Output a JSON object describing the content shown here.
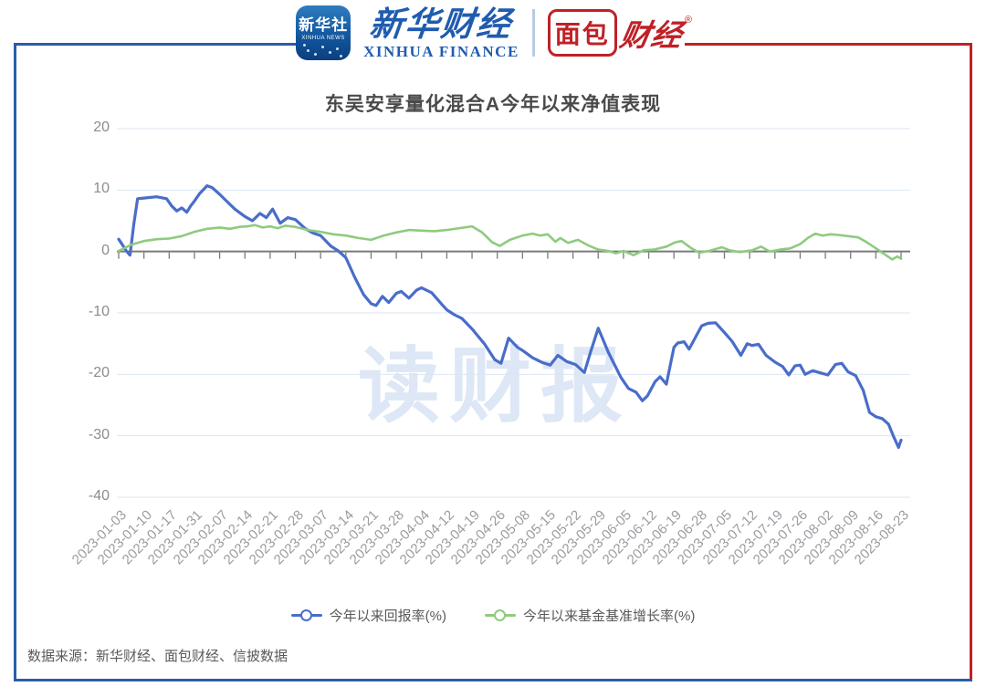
{
  "header": {
    "news_badge": {
      "cn": "新华社",
      "en": "XINHUA NEWS"
    },
    "finance_logo": {
      "cn": "新华财经",
      "en": "XINHUA FINANCE"
    },
    "bread_logo": {
      "cn_boxed": "面包",
      "cn_italic": "财经",
      "reg": "®"
    }
  },
  "chart_data": {
    "type": "line",
    "title": "东吴安享量化混合A今年以来净值表现",
    "categories": [
      "2023-01-03",
      "2023-01-10",
      "2023-01-17",
      "2023-01-31",
      "2023-02-07",
      "2023-02-14",
      "2023-02-21",
      "2023-02-28",
      "2023-03-07",
      "2023-03-14",
      "2023-03-21",
      "2023-03-28",
      "2023-04-04",
      "2023-04-12",
      "2023-04-19",
      "2023-04-26",
      "2023-05-08",
      "2023-05-15",
      "2023-05-22",
      "2023-05-29",
      "2023-06-05",
      "2023-06-12",
      "2023-06-19",
      "2023-06-28",
      "2023-07-05",
      "2023-07-12",
      "2023-07-19",
      "2023-07-26",
      "2023-08-02",
      "2023-08-09",
      "2023-08-16",
      "2023-08-23"
    ],
    "yticks": [
      20,
      10,
      0,
      -10,
      -20,
      -30,
      -40
    ],
    "ylim": [
      -40,
      20
    ],
    "grid": true,
    "legend_position": "bottom",
    "series": [
      {
        "name": "今年以来回报率(%)",
        "color": "#4a6dc9",
        "points": [
          [
            0,
            2.0
          ],
          [
            0.15,
            1.1
          ],
          [
            0.3,
            0.1
          ],
          [
            0.45,
            -0.6
          ],
          [
            0.6,
            4.5
          ],
          [
            0.75,
            8.6
          ],
          [
            1,
            8.7
          ],
          [
            1.5,
            8.9
          ],
          [
            1.9,
            8.6
          ],
          [
            2.1,
            7.4
          ],
          [
            2.3,
            6.6
          ],
          [
            2.5,
            7.1
          ],
          [
            2.7,
            6.4
          ],
          [
            2.85,
            7.4
          ],
          [
            3,
            8.2
          ],
          [
            3.2,
            9.4
          ],
          [
            3.5,
            10.7
          ],
          [
            3.7,
            10.4
          ],
          [
            4,
            9.3
          ],
          [
            4.3,
            8.1
          ],
          [
            4.6,
            6.9
          ],
          [
            5,
            5.7
          ],
          [
            5.3,
            5.0
          ],
          [
            5.6,
            6.2
          ],
          [
            5.85,
            5.5
          ],
          [
            6.1,
            6.9
          ],
          [
            6.4,
            4.6
          ],
          [
            6.7,
            5.5
          ],
          [
            7,
            5.2
          ],
          [
            7.4,
            3.7
          ],
          [
            7.7,
            3.0
          ],
          [
            8,
            2.6
          ],
          [
            8.4,
            0.9
          ],
          [
            8.7,
            0.1
          ],
          [
            9,
            -1.0
          ],
          [
            9.35,
            -4.2
          ],
          [
            9.7,
            -7.0
          ],
          [
            10,
            -8.5
          ],
          [
            10.2,
            -8.8
          ],
          [
            10.45,
            -7.3
          ],
          [
            10.7,
            -8.3
          ],
          [
            11,
            -6.8
          ],
          [
            11.2,
            -6.5
          ],
          [
            11.5,
            -7.6
          ],
          [
            11.8,
            -6.3
          ],
          [
            12,
            -5.9
          ],
          [
            12.4,
            -6.7
          ],
          [
            12.8,
            -8.6
          ],
          [
            13,
            -9.5
          ],
          [
            13.3,
            -10.3
          ],
          [
            13.6,
            -10.9
          ],
          [
            14,
            -12.6
          ],
          [
            14.5,
            -15.1
          ],
          [
            14.9,
            -17.6
          ],
          [
            15.15,
            -18.2
          ],
          [
            15.45,
            -14.1
          ],
          [
            15.8,
            -15.6
          ],
          [
            16,
            -16.1
          ],
          [
            16.4,
            -17.3
          ],
          [
            16.8,
            -18.1
          ],
          [
            17.1,
            -18.5
          ],
          [
            17.4,
            -16.9
          ],
          [
            17.75,
            -17.9
          ],
          [
            18.1,
            -18.4
          ],
          [
            18.45,
            -19.7
          ],
          [
            18.7,
            -16.3
          ],
          [
            19,
            -12.5
          ],
          [
            19.4,
            -16.4
          ],
          [
            19.9,
            -20.5
          ],
          [
            20.2,
            -22.3
          ],
          [
            20.5,
            -22.9
          ],
          [
            20.75,
            -24.3
          ],
          [
            20.95,
            -23.5
          ],
          [
            21.25,
            -21.2
          ],
          [
            21.45,
            -20.4
          ],
          [
            21.7,
            -21.6
          ],
          [
            22,
            -15.6
          ],
          [
            22.15,
            -14.9
          ],
          [
            22.4,
            -14.7
          ],
          [
            22.6,
            -15.9
          ],
          [
            22.9,
            -13.6
          ],
          [
            23.1,
            -12.1
          ],
          [
            23.35,
            -11.7
          ],
          [
            23.65,
            -11.6
          ],
          [
            24,
            -13.2
          ],
          [
            24.3,
            -14.6
          ],
          [
            24.65,
            -16.9
          ],
          [
            24.9,
            -15.0
          ],
          [
            25.1,
            -15.3
          ],
          [
            25.35,
            -15.1
          ],
          [
            25.65,
            -16.9
          ],
          [
            26,
            -18.0
          ],
          [
            26.3,
            -18.7
          ],
          [
            26.55,
            -20.1
          ],
          [
            26.8,
            -18.6
          ],
          [
            27,
            -18.5
          ],
          [
            27.2,
            -20.0
          ],
          [
            27.5,
            -19.4
          ],
          [
            27.75,
            -19.7
          ],
          [
            28.1,
            -20.1
          ],
          [
            28.4,
            -18.4
          ],
          [
            28.65,
            -18.2
          ],
          [
            28.9,
            -19.6
          ],
          [
            29.2,
            -20.2
          ],
          [
            29.5,
            -22.6
          ],
          [
            29.75,
            -26.2
          ],
          [
            30,
            -26.9
          ],
          [
            30.25,
            -27.2
          ],
          [
            30.5,
            -28.1
          ],
          [
            30.7,
            -30.1
          ],
          [
            30.9,
            -31.9
          ],
          [
            31,
            -30.7
          ]
        ]
      },
      {
        "name": "今年以来基金基准增长率(%)",
        "color": "#8ecb7e",
        "points": [
          [
            0,
            0.1
          ],
          [
            0.5,
            1.1
          ],
          [
            1,
            1.7
          ],
          [
            1.5,
            2.0
          ],
          [
            2,
            2.1
          ],
          [
            2.5,
            2.5
          ],
          [
            3,
            3.2
          ],
          [
            3.5,
            3.7
          ],
          [
            4,
            3.9
          ],
          [
            4.4,
            3.7
          ],
          [
            4.8,
            4.0
          ],
          [
            5.1,
            4.1
          ],
          [
            5.4,
            4.3
          ],
          [
            5.7,
            3.9
          ],
          [
            6,
            4.1
          ],
          [
            6.3,
            3.8
          ],
          [
            6.6,
            4.2
          ],
          [
            7,
            4.0
          ],
          [
            7.5,
            3.5
          ],
          [
            8,
            3.2
          ],
          [
            8.5,
            2.8
          ],
          [
            9,
            2.6
          ],
          [
            9.5,
            2.2
          ],
          [
            10,
            1.9
          ],
          [
            10.5,
            2.6
          ],
          [
            11,
            3.1
          ],
          [
            11.5,
            3.5
          ],
          [
            12,
            3.4
          ],
          [
            12.5,
            3.3
          ],
          [
            13,
            3.5
          ],
          [
            13.5,
            3.8
          ],
          [
            14,
            4.1
          ],
          [
            14.4,
            3.1
          ],
          [
            14.8,
            1.5
          ],
          [
            15.1,
            0.9
          ],
          [
            15.5,
            1.9
          ],
          [
            16,
            2.6
          ],
          [
            16.4,
            2.9
          ],
          [
            16.7,
            2.6
          ],
          [
            17,
            2.8
          ],
          [
            17.3,
            1.6
          ],
          [
            17.5,
            2.2
          ],
          [
            17.8,
            1.4
          ],
          [
            18.2,
            1.9
          ],
          [
            18.6,
            1.0
          ],
          [
            19,
            0.3
          ],
          [
            19.4,
            0.1
          ],
          [
            19.7,
            -0.3
          ],
          [
            20,
            0.1
          ],
          [
            20.4,
            -0.6
          ],
          [
            20.8,
            0.2
          ],
          [
            21.2,
            0.3
          ],
          [
            21.7,
            0.8
          ],
          [
            22.05,
            1.5
          ],
          [
            22.3,
            1.7
          ],
          [
            22.7,
            0.5
          ],
          [
            23,
            -0.2
          ],
          [
            23.4,
            0.1
          ],
          [
            23.9,
            0.7
          ],
          [
            24.2,
            0.2
          ],
          [
            24.6,
            -0.1
          ],
          [
            25.1,
            0.2
          ],
          [
            25.45,
            0.8
          ],
          [
            25.8,
            0.0
          ],
          [
            26.2,
            0.3
          ],
          [
            26.6,
            0.5
          ],
          [
            27,
            1.2
          ],
          [
            27.3,
            2.2
          ],
          [
            27.6,
            2.9
          ],
          [
            27.9,
            2.6
          ],
          [
            28.2,
            2.8
          ],
          [
            28.5,
            2.7
          ],
          [
            28.9,
            2.5
          ],
          [
            29.3,
            2.3
          ],
          [
            29.6,
            1.6
          ],
          [
            29.9,
            0.8
          ],
          [
            30.15,
            0.1
          ],
          [
            30.4,
            -0.6
          ],
          [
            30.65,
            -1.3
          ],
          [
            30.85,
            -0.8
          ],
          [
            31,
            -1.2
          ]
        ]
      }
    ]
  },
  "watermark": {
    "text": "读财报"
  },
  "source": {
    "text": "数据来源：新华财经、面包财经、信披数据"
  },
  "colors": {
    "frame_blue": "#2b5ca8",
    "frame_red": "#bf2228",
    "grid_line": "#dce6f2",
    "zero_axis": "#7a7a7a",
    "line_blue": "#4a6dc9",
    "line_green": "#8ecb7e"
  }
}
